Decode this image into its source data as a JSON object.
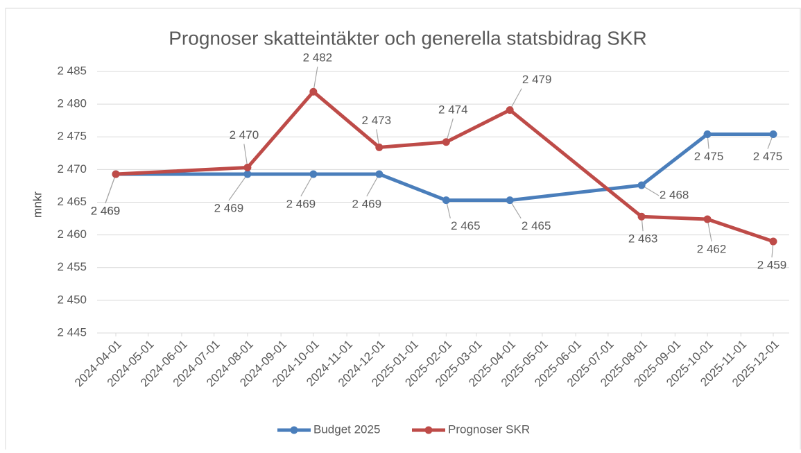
{
  "chart_data": {
    "type": "line",
    "title": "Prognoser skatteintäkter och generella statsbidrag SKR",
    "y_label": "mnkr",
    "x": [
      "2024-04-01",
      "2024-08-01",
      "2024-10-01",
      "2024-12-01",
      "2025-02-01",
      "2025-04-01",
      "2025-08-01",
      "2025-10-01",
      "2025-12-01"
    ],
    "xlim": [
      "2024-04-01",
      "2025-12-01"
    ],
    "xticks": [
      "2024-04-01",
      "2024-05-01",
      "2024-06-01",
      "2024-07-01",
      "2024-08-01",
      "2024-09-01",
      "2024-10-01",
      "2024-11-01",
      "2024-12-01",
      "2025-01-01",
      "2025-02-01",
      "2025-03-01",
      "2025-04-01",
      "2025-05-01",
      "2025-06-01",
      "2025-07-01",
      "2025-08-01",
      "2025-09-01",
      "2025-10-01",
      "2025-11-01",
      "2025-12-01"
    ],
    "ylim": [
      2445,
      2485
    ],
    "yticks": [
      {
        "value": 2445,
        "label": "2 445"
      },
      {
        "value": 2450,
        "label": "2 450"
      },
      {
        "value": 2455,
        "label": "2 455"
      },
      {
        "value": 2460,
        "label": "2 460"
      },
      {
        "value": 2465,
        "label": "2 465"
      },
      {
        "value": 2470,
        "label": "2 470"
      },
      {
        "value": 2475,
        "label": "2 475"
      },
      {
        "value": 2480,
        "label": "2 480"
      },
      {
        "value": 2485,
        "label": "2 485"
      }
    ],
    "grid": true,
    "legend": "bottom",
    "series": [
      {
        "name": "Budget 2025",
        "color": "#4a7ebb",
        "values": [
          2469.3,
          2469.3,
          2469.3,
          2469.3,
          2465.3,
          2465.3,
          2467.6,
          2475.4,
          2475.4
        ],
        "value_labels": [
          "2 469",
          "2 469",
          "2 469",
          "2 469",
          "2 465",
          "2 465",
          "2 468",
          "2 475",
          "2 475"
        ]
      },
      {
        "name": "Prognoser SKR",
        "color": "#be4b48",
        "values": [
          2469.3,
          2470.3,
          2481.9,
          2473.4,
          2474.2,
          2479.1,
          2462.8,
          2462.4,
          2459.0
        ],
        "value_labels": [
          "2 469",
          "2 470",
          "2 482",
          "2 473",
          "2 474",
          "2 479",
          "2 463",
          "2 462",
          "2 459"
        ]
      }
    ]
  }
}
